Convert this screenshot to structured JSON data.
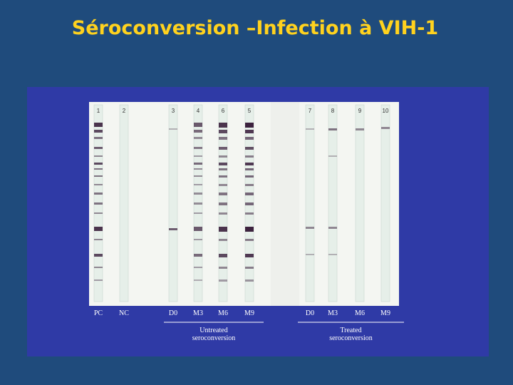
{
  "title": "Séroconversion –Infection à VIH-1",
  "strips": [
    {
      "number": "1",
      "label": "PC"
    },
    {
      "number": "2",
      "label": "NC"
    },
    {
      "number": "3",
      "label": "D0"
    },
    {
      "number": "4",
      "label": "M3"
    },
    {
      "number": "6",
      "label": "M6"
    },
    {
      "number": "5",
      "label": "M9"
    },
    {
      "number": "7",
      "label": "D0"
    },
    {
      "number": "8",
      "label": "M3"
    },
    {
      "number": "9",
      "label": "M6"
    },
    {
      "number": "10",
      "label": "M9"
    }
  ],
  "groups": [
    {
      "lines": [
        "Untreated",
        "seroconversion"
      ]
    },
    {
      "lines": [
        "Treated",
        "seroconversion"
      ]
    }
  ]
}
